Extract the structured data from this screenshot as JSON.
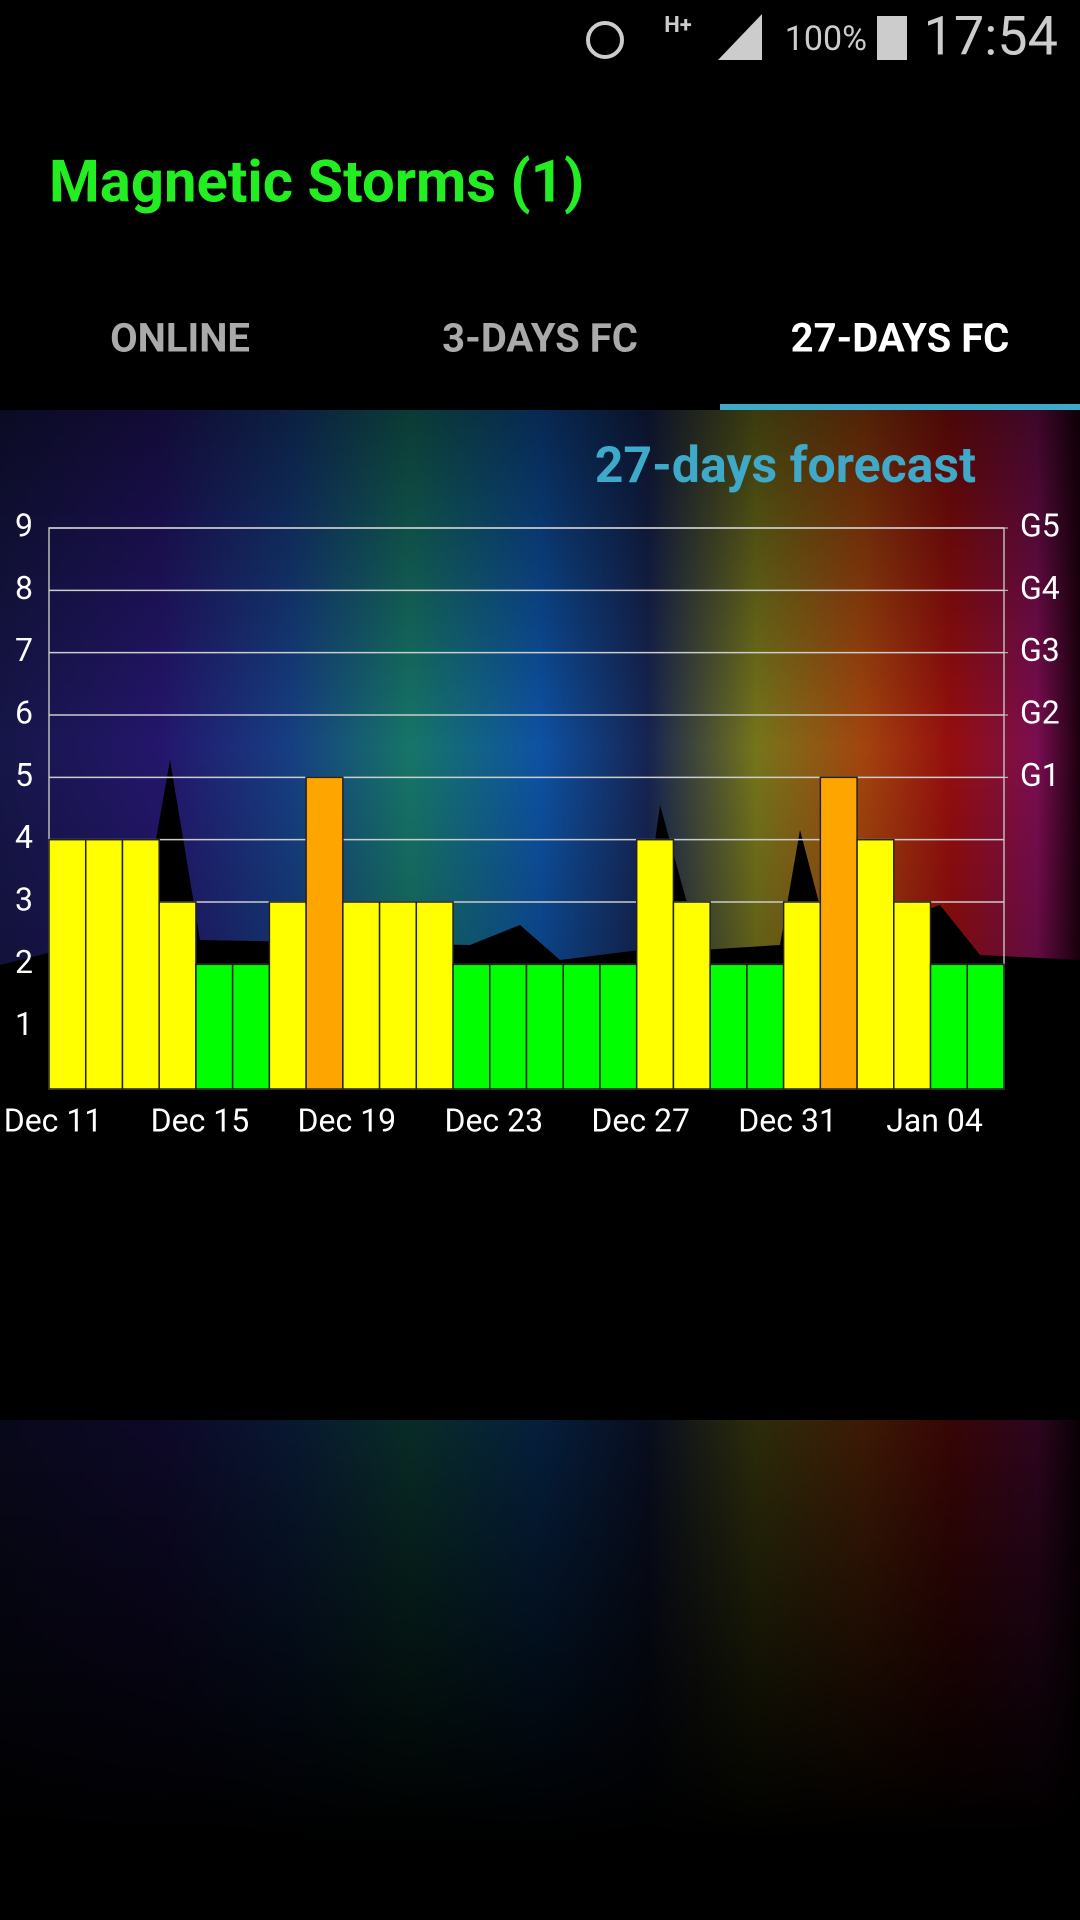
{
  "status_bar": {
    "network": "H+",
    "battery": "100%",
    "time": "17:54"
  },
  "app_title": "Magnetic Storms (1)",
  "tabs": [
    "ONLINE",
    "3-DAYS FC",
    "27-DAYS FC"
  ],
  "chart_data": {
    "type": "bar",
    "title": "27-days forecast",
    "categories": [
      "Dec 11",
      null,
      null,
      null,
      "Dec 15",
      null,
      null,
      null,
      "Dec 19",
      null,
      null,
      null,
      "Dec 23",
      null,
      null,
      null,
      "Dec 27",
      null,
      null,
      null,
      "Dec 31",
      null,
      null,
      null,
      "Jan 04",
      null
    ],
    "values": [
      4,
      4,
      4,
      3,
      2,
      2,
      3,
      5,
      3,
      3,
      3,
      2,
      2,
      2,
      2,
      2,
      4,
      3,
      2,
      2,
      3,
      5,
      4,
      3,
      2,
      2
    ],
    "colors": [
      "#ffff00",
      "#ffff00",
      "#ffff00",
      "#ffff00",
      "#00ff00",
      "#00ff00",
      "#ffff00",
      "#ffa500",
      "#ffff00",
      "#ffff00",
      "#ffff00",
      "#00ff00",
      "#00ff00",
      "#00ff00",
      "#00ff00",
      "#00ff00",
      "#ffff00",
      "#ffff00",
      "#00ff00",
      "#00ff00",
      "#ffff00",
      "#ffa500",
      "#ffff00",
      "#ffff00",
      "#00ff00",
      "#00ff00"
    ],
    "ylim": [
      0,
      9
    ],
    "yticks": [
      1,
      2,
      3,
      4,
      5,
      6,
      7,
      8,
      9
    ],
    "y2lim": [
      0,
      9
    ],
    "y2ticks": [
      {
        "value": 5,
        "label": "G1"
      },
      {
        "value": 6,
        "label": "G2"
      },
      {
        "value": 7,
        "label": "G3"
      },
      {
        "value": 8,
        "label": "G4"
      },
      {
        "value": 9,
        "label": "G5"
      }
    ],
    "grid": true
  }
}
